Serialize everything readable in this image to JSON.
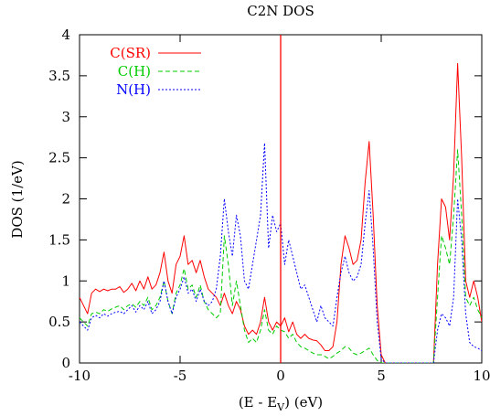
{
  "chart_data": {
    "type": "line",
    "title": "C2N DOS",
    "xlabel_main": "(E - E",
    "xlabel_sub": "V",
    "xlabel_tail": ") (eV)",
    "ylabel": "DOS (1/eV)",
    "xlim": [
      -10,
      10
    ],
    "ylim": [
      0,
      4
    ],
    "xticks": [
      -10,
      -5,
      0,
      5,
      10
    ],
    "yticks": [
      0,
      0.5,
      1,
      1.5,
      2,
      2.5,
      3,
      3.5,
      4
    ],
    "grid": false,
    "legend_position": "top-left",
    "fermi_level_x": 0,
    "fermi_color": "#ff0000",
    "series": [
      {
        "name": "C(SR)",
        "color": "#ff0000",
        "dash": "solid",
        "points": [
          [
            -10,
            0.8
          ],
          [
            -9.8,
            0.7
          ],
          [
            -9.6,
            0.6
          ],
          [
            -9.4,
            0.85
          ],
          [
            -9.2,
            0.9
          ],
          [
            -9.0,
            0.87
          ],
          [
            -8.8,
            0.9
          ],
          [
            -8.6,
            0.88
          ],
          [
            -8.4,
            0.9
          ],
          [
            -8.2,
            0.9
          ],
          [
            -8.0,
            0.93
          ],
          [
            -7.8,
            0.86
          ],
          [
            -7.6,
            0.9
          ],
          [
            -7.4,
            0.97
          ],
          [
            -7.2,
            0.88
          ],
          [
            -7.0,
            1.0
          ],
          [
            -6.8,
            0.9
          ],
          [
            -6.6,
            1.05
          ],
          [
            -6.4,
            0.9
          ],
          [
            -6.2,
            0.95
          ],
          [
            -6.0,
            1.1
          ],
          [
            -5.8,
            1.35
          ],
          [
            -5.6,
            1.0
          ],
          [
            -5.4,
            0.85
          ],
          [
            -5.2,
            1.2
          ],
          [
            -5.0,
            1.3
          ],
          [
            -4.8,
            1.55
          ],
          [
            -4.6,
            1.2
          ],
          [
            -4.4,
            1.25
          ],
          [
            -4.2,
            1.1
          ],
          [
            -4.0,
            1.25
          ],
          [
            -3.8,
            1.05
          ],
          [
            -3.6,
            0.9
          ],
          [
            -3.4,
            0.85
          ],
          [
            -3.2,
            0.8
          ],
          [
            -3.0,
            0.7
          ],
          [
            -2.8,
            0.85
          ],
          [
            -2.6,
            0.7
          ],
          [
            -2.4,
            0.6
          ],
          [
            -2.2,
            0.75
          ],
          [
            -2.0,
            0.65
          ],
          [
            -1.8,
            0.45
          ],
          [
            -1.6,
            0.35
          ],
          [
            -1.4,
            0.4
          ],
          [
            -1.2,
            0.35
          ],
          [
            -1.0,
            0.5
          ],
          [
            -0.8,
            0.8
          ],
          [
            -0.6,
            0.5
          ],
          [
            -0.4,
            0.4
          ],
          [
            -0.2,
            0.5
          ],
          [
            0,
            0.45
          ],
          [
            0.2,
            0.55
          ],
          [
            0.4,
            0.38
          ],
          [
            0.6,
            0.5
          ],
          [
            0.8,
            0.35
          ],
          [
            1.0,
            0.3
          ],
          [
            1.2,
            0.35
          ],
          [
            1.4,
            0.3
          ],
          [
            1.6,
            0.28
          ],
          [
            1.8,
            0.27
          ],
          [
            2.0,
            0.22
          ],
          [
            2.2,
            0.15
          ],
          [
            2.4,
            0.15
          ],
          [
            2.6,
            0.2
          ],
          [
            2.8,
            0.5
          ],
          [
            3.0,
            1.2
          ],
          [
            3.2,
            1.55
          ],
          [
            3.4,
            1.4
          ],
          [
            3.6,
            1.2
          ],
          [
            3.8,
            1.25
          ],
          [
            4.0,
            1.5
          ],
          [
            4.2,
            2.2
          ],
          [
            4.4,
            2.7
          ],
          [
            4.6,
            1.8
          ],
          [
            4.8,
            0.7
          ],
          [
            5.0,
            0.1
          ],
          [
            5.2,
            0
          ],
          [
            7.6,
            0
          ],
          [
            7.8,
            1.2
          ],
          [
            8.0,
            2.0
          ],
          [
            8.2,
            1.9
          ],
          [
            8.4,
            1.5
          ],
          [
            8.6,
            2.3
          ],
          [
            8.8,
            3.65
          ],
          [
            9.0,
            2.5
          ],
          [
            9.2,
            1.0
          ],
          [
            9.4,
            0.8
          ],
          [
            9.6,
            1.0
          ],
          [
            9.8,
            0.8
          ],
          [
            10,
            0.5
          ]
        ]
      },
      {
        "name": "C(H)",
        "color": "#00cc00",
        "dash": "5,3",
        "points": [
          [
            -10,
            0.55
          ],
          [
            -9.8,
            0.5
          ],
          [
            -9.6,
            0.45
          ],
          [
            -9.4,
            0.6
          ],
          [
            -9.2,
            0.62
          ],
          [
            -9.0,
            0.6
          ],
          [
            -8.8,
            0.65
          ],
          [
            -8.6,
            0.63
          ],
          [
            -8.4,
            0.66
          ],
          [
            -8.2,
            0.68
          ],
          [
            -8.0,
            0.7
          ],
          [
            -7.8,
            0.65
          ],
          [
            -7.6,
            0.7
          ],
          [
            -7.4,
            0.72
          ],
          [
            -7.2,
            0.68
          ],
          [
            -7.0,
            0.75
          ],
          [
            -6.8,
            0.7
          ],
          [
            -6.6,
            0.8
          ],
          [
            -6.4,
            0.65
          ],
          [
            -6.2,
            0.7
          ],
          [
            -6.0,
            0.8
          ],
          [
            -5.8,
            1.0
          ],
          [
            -5.6,
            0.75
          ],
          [
            -5.4,
            0.6
          ],
          [
            -5.2,
            0.85
          ],
          [
            -5.0,
            0.95
          ],
          [
            -4.8,
            1.15
          ],
          [
            -4.6,
            0.9
          ],
          [
            -4.4,
            0.95
          ],
          [
            -4.2,
            0.8
          ],
          [
            -4.0,
            0.95
          ],
          [
            -3.8,
            0.75
          ],
          [
            -3.6,
            0.65
          ],
          [
            -3.4,
            0.6
          ],
          [
            -3.2,
            0.55
          ],
          [
            -3.0,
            0.6
          ],
          [
            -2.8,
            1.55
          ],
          [
            -2.6,
            1.2
          ],
          [
            -2.4,
            0.7
          ],
          [
            -2.2,
            1.0
          ],
          [
            -2.0,
            0.7
          ],
          [
            -1.8,
            0.4
          ],
          [
            -1.6,
            0.25
          ],
          [
            -1.4,
            0.3
          ],
          [
            -1.2,
            0.25
          ],
          [
            -1.0,
            0.4
          ],
          [
            -0.8,
            0.65
          ],
          [
            -0.6,
            0.4
          ],
          [
            -0.4,
            0.35
          ],
          [
            -0.2,
            0.45
          ],
          [
            0,
            0.4
          ],
          [
            0.2,
            0.38
          ],
          [
            0.4,
            0.3
          ],
          [
            0.6,
            0.35
          ],
          [
            0.8,
            0.25
          ],
          [
            1.0,
            0.2
          ],
          [
            1.2,
            0.18
          ],
          [
            1.4,
            0.15
          ],
          [
            1.6,
            0.12
          ],
          [
            1.8,
            0.1
          ],
          [
            2.0,
            0.1
          ],
          [
            2.2,
            0.08
          ],
          [
            2.4,
            0.05
          ],
          [
            2.6,
            0.08
          ],
          [
            2.8,
            0.12
          ],
          [
            3.0,
            0.15
          ],
          [
            3.2,
            0.2
          ],
          [
            3.4,
            0.18
          ],
          [
            3.6,
            0.12
          ],
          [
            3.8,
            0.1
          ],
          [
            4.0,
            0.12
          ],
          [
            4.2,
            0.15
          ],
          [
            4.4,
            0.18
          ],
          [
            4.6,
            0.1
          ],
          [
            4.8,
            0.03
          ],
          [
            5.0,
            0
          ],
          [
            7.6,
            0
          ],
          [
            7.8,
            0.8
          ],
          [
            8.0,
            1.55
          ],
          [
            8.2,
            1.4
          ],
          [
            8.4,
            1.2
          ],
          [
            8.6,
            1.8
          ],
          [
            8.8,
            2.6
          ],
          [
            9.0,
            1.8
          ],
          [
            9.2,
            0.8
          ],
          [
            9.4,
            0.7
          ],
          [
            9.6,
            0.8
          ],
          [
            9.8,
            0.65
          ],
          [
            10,
            0.55
          ]
        ]
      },
      {
        "name": "N(H)",
        "color": "#0000ff",
        "dash": "2,2",
        "points": [
          [
            -10,
            0.5
          ],
          [
            -9.8,
            0.45
          ],
          [
            -9.6,
            0.4
          ],
          [
            -9.4,
            0.55
          ],
          [
            -9.2,
            0.58
          ],
          [
            -9.0,
            0.55
          ],
          [
            -8.8,
            0.6
          ],
          [
            -8.6,
            0.57
          ],
          [
            -8.4,
            0.6
          ],
          [
            -8.2,
            0.62
          ],
          [
            -8.0,
            0.63
          ],
          [
            -7.8,
            0.6
          ],
          [
            -7.6,
            0.65
          ],
          [
            -7.4,
            0.7
          ],
          [
            -7.2,
            0.62
          ],
          [
            -7.0,
            0.7
          ],
          [
            -6.8,
            0.65
          ],
          [
            -6.6,
            0.75
          ],
          [
            -6.4,
            0.6
          ],
          [
            -6.2,
            0.65
          ],
          [
            -6.0,
            0.75
          ],
          [
            -5.8,
            1.0
          ],
          [
            -5.6,
            0.75
          ],
          [
            -5.4,
            0.6
          ],
          [
            -5.2,
            0.8
          ],
          [
            -5.0,
            0.9
          ],
          [
            -4.8,
            1.05
          ],
          [
            -4.6,
            0.85
          ],
          [
            -4.4,
            0.9
          ],
          [
            -4.2,
            0.75
          ],
          [
            -4.0,
            0.9
          ],
          [
            -3.8,
            0.75
          ],
          [
            -3.6,
            0.7
          ],
          [
            -3.4,
            0.75
          ],
          [
            -3.2,
            0.9
          ],
          [
            -3.0,
            1.3
          ],
          [
            -2.8,
            2.0
          ],
          [
            -2.6,
            1.6
          ],
          [
            -2.4,
            1.3
          ],
          [
            -2.2,
            1.8
          ],
          [
            -2.0,
            1.55
          ],
          [
            -1.8,
            1.0
          ],
          [
            -1.6,
            0.9
          ],
          [
            -1.4,
            1.2
          ],
          [
            -1.2,
            1.5
          ],
          [
            -1.0,
            1.8
          ],
          [
            -0.8,
            2.68
          ],
          [
            -0.6,
            1.4
          ],
          [
            -0.4,
            1.8
          ],
          [
            -0.2,
            1.6
          ],
          [
            0,
            1.7
          ],
          [
            0.2,
            1.2
          ],
          [
            0.4,
            1.5
          ],
          [
            0.6,
            1.3
          ],
          [
            0.8,
            1.1
          ],
          [
            1.0,
            0.9
          ],
          [
            1.2,
            0.95
          ],
          [
            1.4,
            0.8
          ],
          [
            1.6,
            0.65
          ],
          [
            1.8,
            0.5
          ],
          [
            2.0,
            0.7
          ],
          [
            2.2,
            0.55
          ],
          [
            2.4,
            0.5
          ],
          [
            2.6,
            0.45
          ],
          [
            2.8,
            0.8
          ],
          [
            3.0,
            1.1
          ],
          [
            3.2,
            1.3
          ],
          [
            3.4,
            1.1
          ],
          [
            3.6,
            1.0
          ],
          [
            3.8,
            1.05
          ],
          [
            4.0,
            1.2
          ],
          [
            4.2,
            1.7
          ],
          [
            4.4,
            2.1
          ],
          [
            4.6,
            1.4
          ],
          [
            4.8,
            0.5
          ],
          [
            5.0,
            0.05
          ],
          [
            5.2,
            0
          ],
          [
            7.6,
            0
          ],
          [
            7.8,
            0.4
          ],
          [
            8.0,
            0.6
          ],
          [
            8.2,
            0.55
          ],
          [
            8.4,
            0.45
          ],
          [
            8.6,
            0.8
          ],
          [
            8.8,
            2.0
          ],
          [
            9.0,
            1.5
          ],
          [
            9.2,
            0.6
          ],
          [
            9.4,
            0.25
          ],
          [
            9.6,
            0.2
          ],
          [
            9.8,
            0.18
          ],
          [
            10,
            0.15
          ]
        ]
      }
    ]
  }
}
